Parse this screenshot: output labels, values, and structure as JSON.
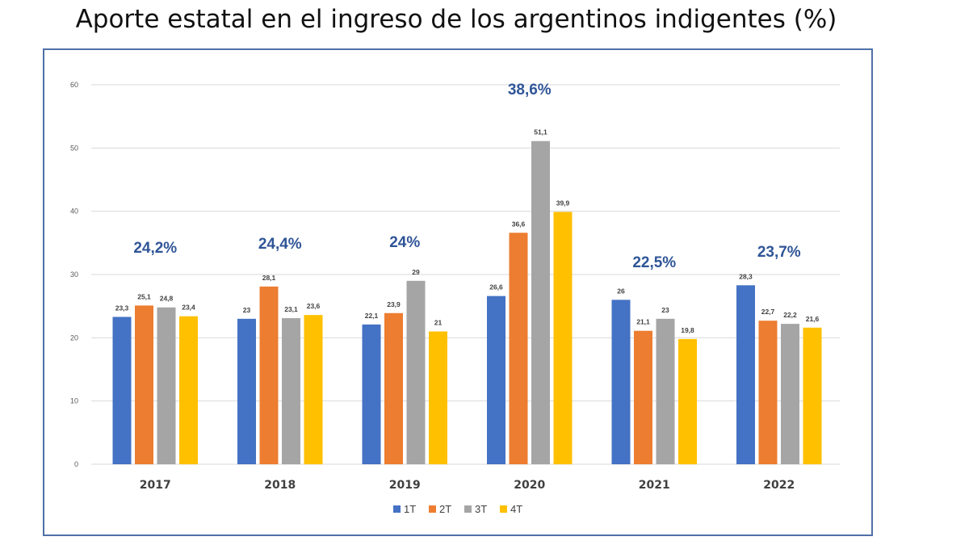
{
  "chart_data": {
    "type": "bar",
    "title": "Aporte estatal en el ingreso de los argentinos indigentes (%)",
    "categories": [
      "2017",
      "2018",
      "2019",
      "2020",
      "2021",
      "2022"
    ],
    "series": [
      {
        "name": "1T",
        "color": "#4472c4",
        "values": [
          23.3,
          23,
          22.1,
          26.6,
          26,
          28.3
        ],
        "labels": [
          "23,3",
          "23",
          "22,1",
          "26,6",
          "26",
          "28,3"
        ]
      },
      {
        "name": "2T",
        "color": "#ed7d31",
        "values": [
          25.1,
          28.1,
          23.9,
          36.6,
          21.1,
          22.7
        ],
        "labels": [
          "25,1",
          "28,1",
          "23,9",
          "36,6",
          "21,1",
          "22,7"
        ]
      },
      {
        "name": "3T",
        "color": "#a5a5a5",
        "values": [
          24.8,
          23.1,
          29,
          51.1,
          23,
          22.2
        ],
        "labels": [
          "24,8",
          "23,1",
          "29",
          "51,1",
          "23",
          "22,2"
        ]
      },
      {
        "name": "4T",
        "color": "#ffc000",
        "values": [
          23.4,
          23.6,
          21,
          39.9,
          19.8,
          21.6
        ],
        "labels": [
          "23,4",
          "23,6",
          "21",
          "39,9",
          "19,8",
          "21,6"
        ]
      }
    ],
    "annual_annotations": [
      "24,2%",
      "24,4%",
      "24%",
      "38,6%",
      "22,5%",
      "23,7%"
    ],
    "annotation_color": "#2f5597",
    "ylim": [
      0,
      60
    ],
    "yticks": [
      0,
      10,
      20,
      30,
      40,
      50,
      60
    ],
    "grid": true,
    "legend": "bottom"
  }
}
